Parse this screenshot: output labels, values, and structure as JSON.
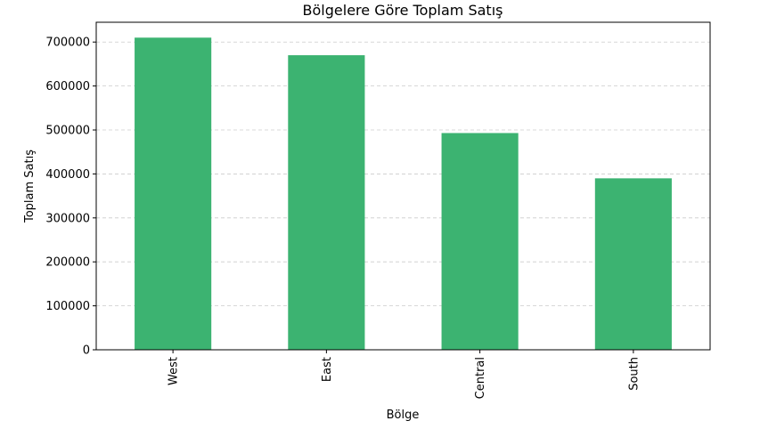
{
  "chart_data": {
    "type": "bar",
    "title": "Bölgelere Göre Toplam Satış",
    "xlabel": "Bölge",
    "ylabel": "Toplam Satış",
    "categories": [
      "West",
      "East",
      "Central",
      "South"
    ],
    "values": [
      710000,
      670000,
      493000,
      390000
    ],
    "ylim": [
      0,
      745000
    ],
    "yticks": [
      0,
      100000,
      200000,
      300000,
      400000,
      500000,
      600000,
      700000
    ],
    "ytick_labels": [
      "0",
      "100000",
      "200000",
      "300000",
      "400000",
      "500000",
      "600000",
      "700000"
    ],
    "grid": "y-dashed",
    "bar_color": "#3cb371",
    "grid_color": "#cccccc"
  }
}
